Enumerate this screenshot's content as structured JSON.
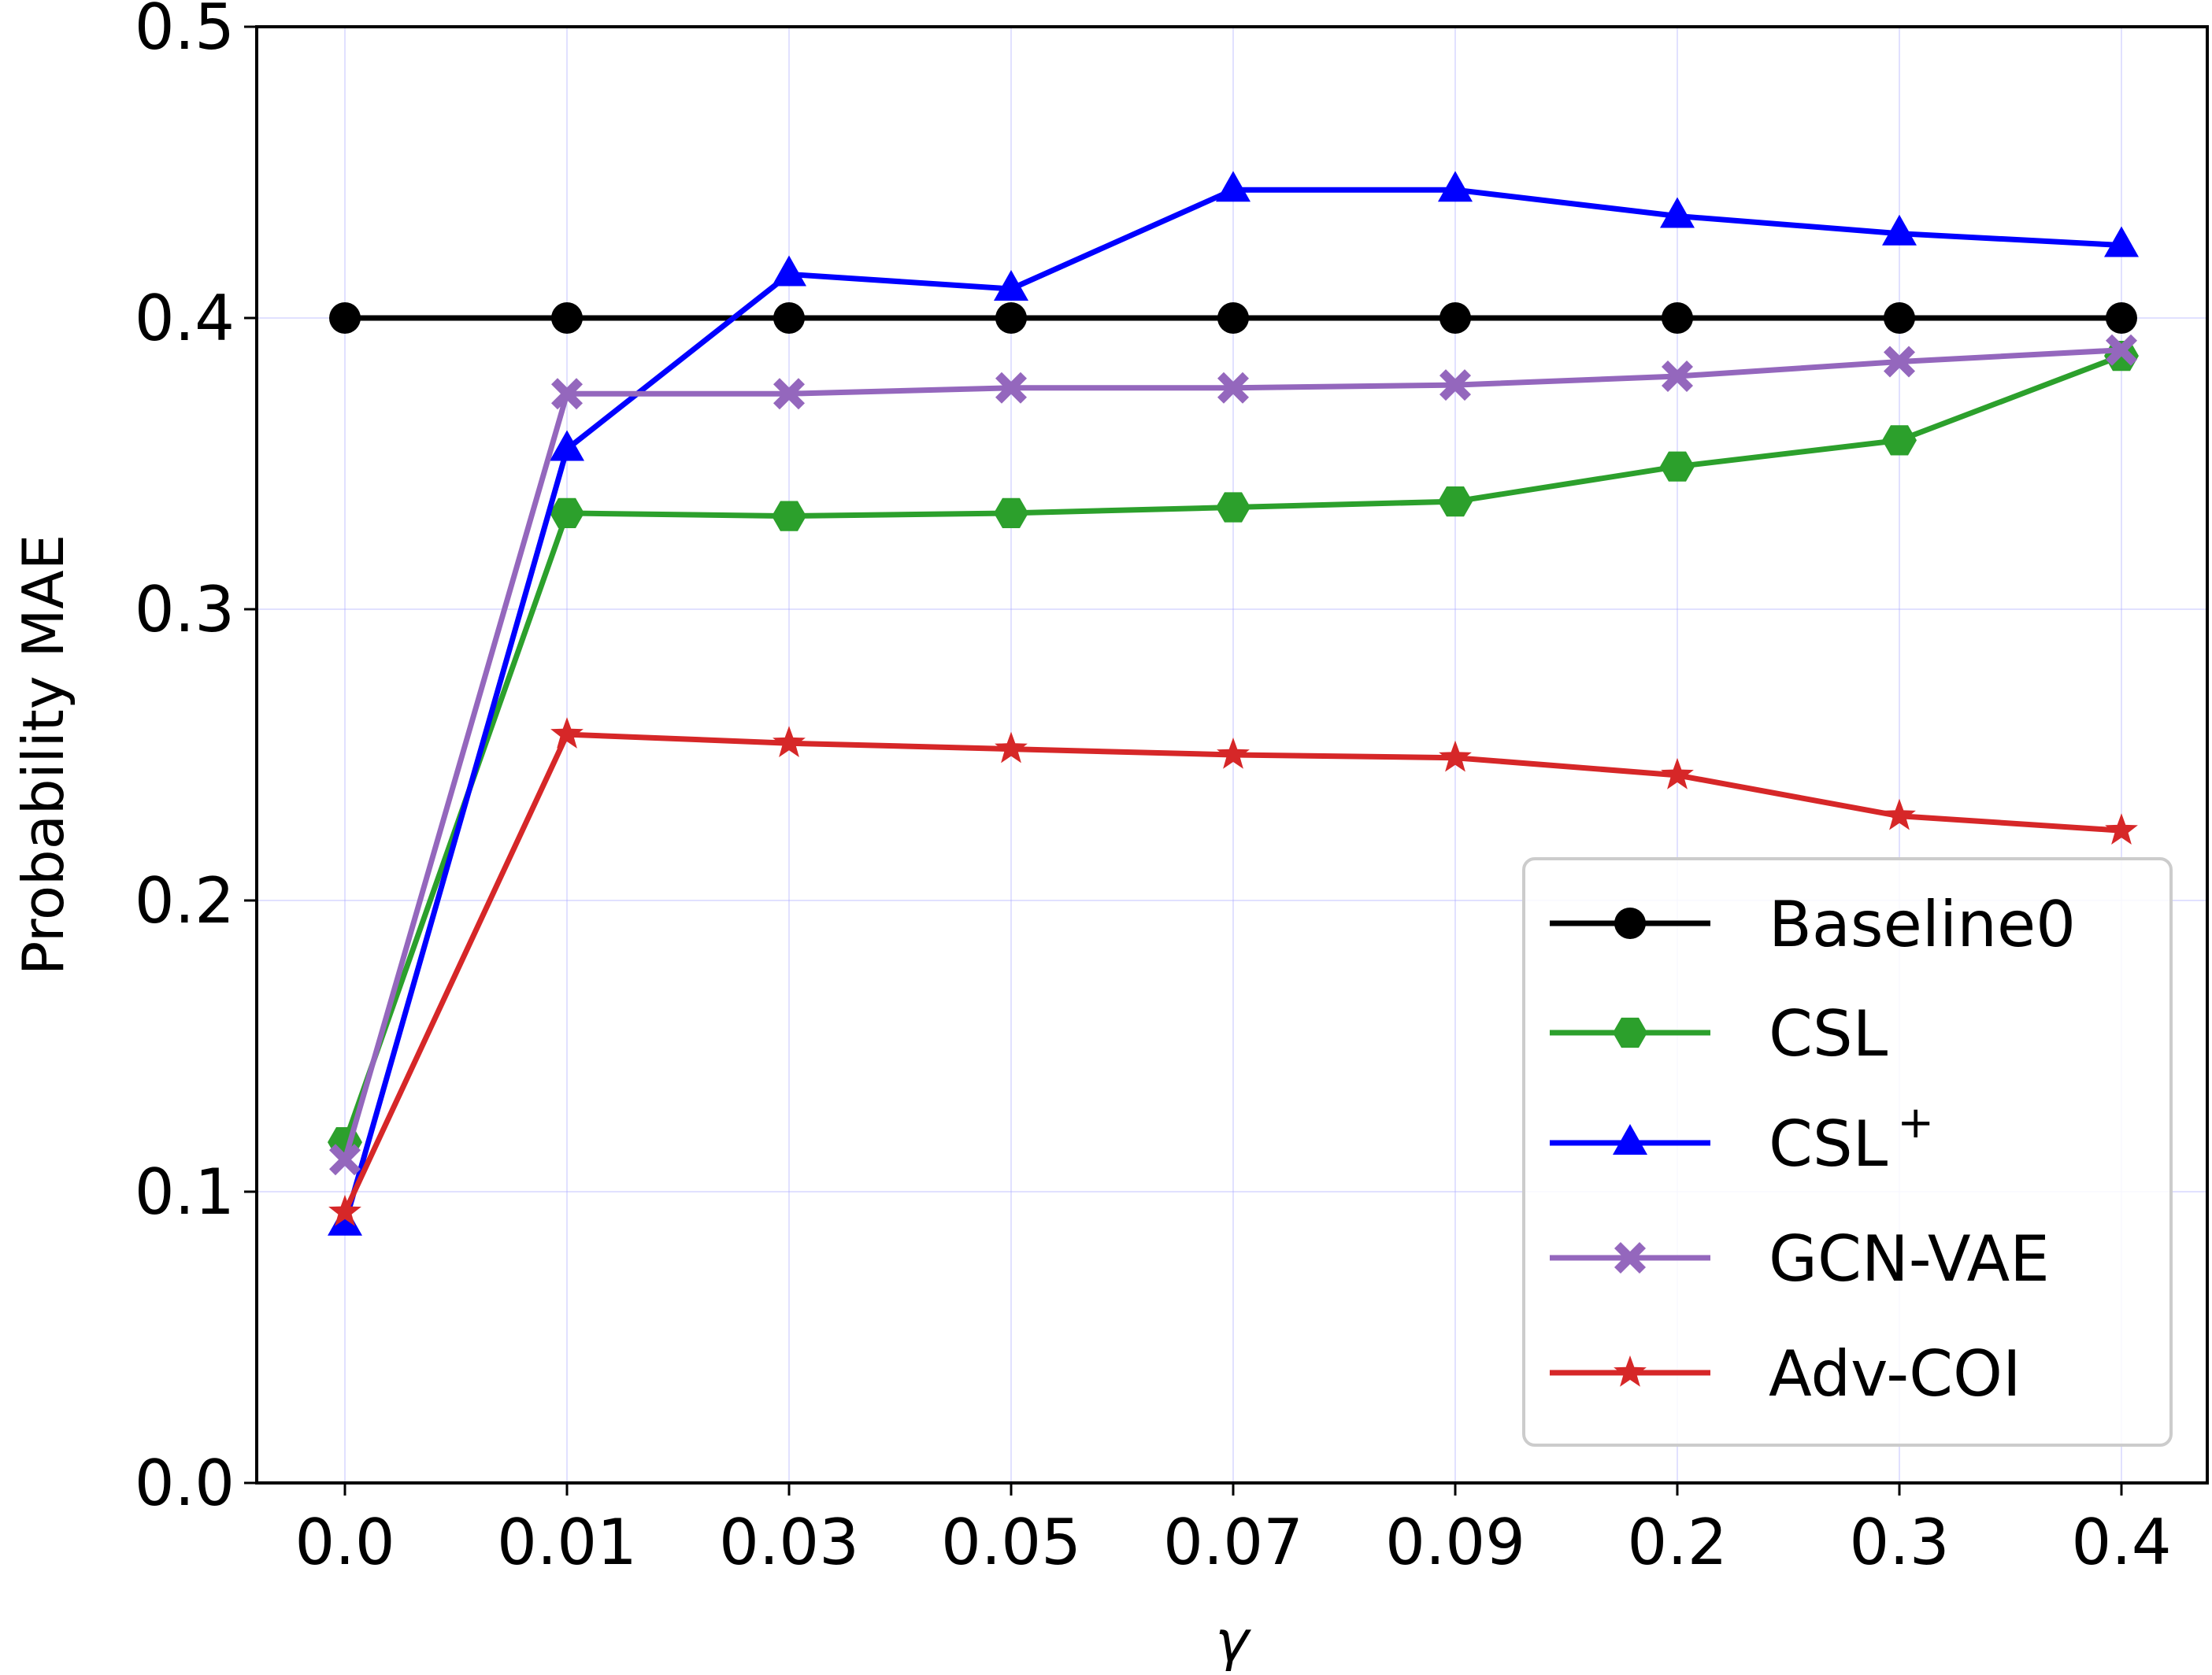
{
  "chart_data": {
    "type": "line",
    "title": "",
    "xlabel": "γ",
    "ylabel": "Probability MAE",
    "ylim": [
      0.0,
      0.5
    ],
    "yticks": [
      "0.0",
      "0.1",
      "0.2",
      "0.3",
      "0.4",
      "0.5"
    ],
    "categories": [
      "0.0",
      "0.01",
      "0.03",
      "0.05",
      "0.07",
      "0.09",
      "0.2",
      "0.3",
      "0.4"
    ],
    "grid": true,
    "legend_position": "lower-right",
    "series": [
      {
        "name": "Baseline0",
        "label_main": "Baseline0",
        "label_sup": "",
        "color": "#000000",
        "marker": "circle",
        "values": [
          0.4,
          0.4,
          0.4,
          0.4,
          0.4,
          0.4,
          0.4,
          0.4,
          0.4
        ]
      },
      {
        "name": "CSL",
        "label_main": "CSL",
        "label_sup": "",
        "color": "#2ca02c",
        "marker": "hexagon",
        "values": [
          0.117,
          0.333,
          0.332,
          0.333,
          0.335,
          0.337,
          0.349,
          0.358,
          0.387
        ]
      },
      {
        "name": "CSL+",
        "label_main": "CSL",
        "label_sup": "+",
        "color": "#0000ff",
        "marker": "triangle",
        "values": [
          0.089,
          0.355,
          0.415,
          0.41,
          0.444,
          0.444,
          0.435,
          0.429,
          0.425
        ]
      },
      {
        "name": "GCN-VAE",
        "label_main": "GCN-VAE",
        "label_sup": "",
        "color": "#9467bd",
        "marker": "x",
        "values": [
          0.111,
          0.374,
          0.374,
          0.376,
          0.376,
          0.377,
          0.38,
          0.385,
          0.389
        ]
      },
      {
        "name": "Adv-COI",
        "label_main": "Adv-COI",
        "label_sup": "",
        "color": "#d62728",
        "marker": "star",
        "values": [
          0.093,
          0.257,
          0.254,
          0.252,
          0.25,
          0.249,
          0.243,
          0.229,
          0.224
        ]
      }
    ]
  }
}
